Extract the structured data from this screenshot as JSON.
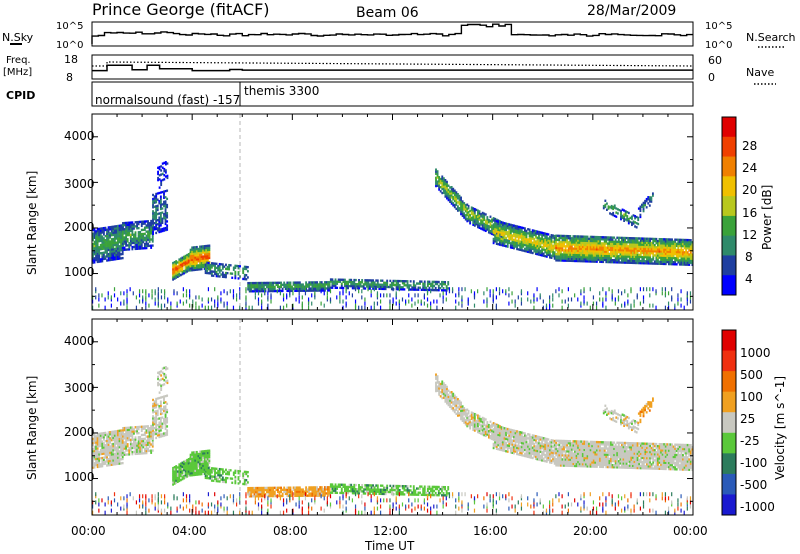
{
  "header": {
    "station": "Prince George (fitACF)",
    "beam": "Beam 06",
    "date": "28/Mar/2009"
  },
  "nsky_panel": {
    "left_label": "N.Sky",
    "left_ticks": [
      "10^5",
      "10^0"
    ],
    "right_label": "N.Search",
    "right_ticks": [
      "10^5",
      "10^0"
    ]
  },
  "freq_panel": {
    "left_label_1": "Freq.",
    "left_label_2": "[MHz]",
    "left_ticks": [
      "18",
      "8"
    ],
    "right_label": "Nave",
    "right_ticks": [
      "60",
      "0"
    ]
  },
  "cpid": {
    "label": "CPID",
    "mode_1": "normalsound (fast) -157",
    "mode_2": "themis 3300"
  },
  "colors": {
    "power_scale": [
      "#0000ff",
      "#1f3fa0",
      "#2f8a6a",
      "#3aa23a",
      "#b8c81e",
      "#f0c000",
      "#f08000",
      "#f04000",
      "#e00000"
    ],
    "velocity_scale": [
      "#1a1ad0",
      "#2a5ab8",
      "#2c7c5c",
      "#5ac83a",
      "#c8c8c0",
      "#f0a020",
      "#f07000",
      "#f03010",
      "#e00000"
    ]
  },
  "chart_data": [
    {
      "type": "heatmap",
      "name": "power",
      "title": "",
      "xlabel": "",
      "ylabel": "Slant Range [km]",
      "xlim": [
        "00:00",
        "24:00"
      ],
      "ylim": [
        200,
        4500
      ],
      "y_ticks": [
        "4000",
        "3000",
        "2000",
        "1000"
      ],
      "colorbar_label": "Power [dB]",
      "colorbar_ticks": [
        "28",
        "24",
        "20",
        "16",
        "12",
        "8",
        "4"
      ],
      "clim": [
        0,
        32
      ]
    },
    {
      "type": "heatmap",
      "name": "velocity",
      "title": "",
      "xlabel": "Time UT",
      "ylabel": "Slant Range [km]",
      "xlim": [
        "00:00",
        "24:00"
      ],
      "ylim": [
        200,
        4500
      ],
      "x_ticks": [
        "00:00",
        "04:00",
        "08:00",
        "12:00",
        "16:00",
        "20:00",
        "00:00"
      ],
      "y_ticks": [
        "4000",
        "3000",
        "2000",
        "1000"
      ],
      "colorbar_label": "Velocity [m s^-1]",
      "colorbar_ticks": [
        "1000",
        "500",
        "100",
        "25",
        "-25",
        "-100",
        "-500",
        "-1000"
      ]
    }
  ]
}
